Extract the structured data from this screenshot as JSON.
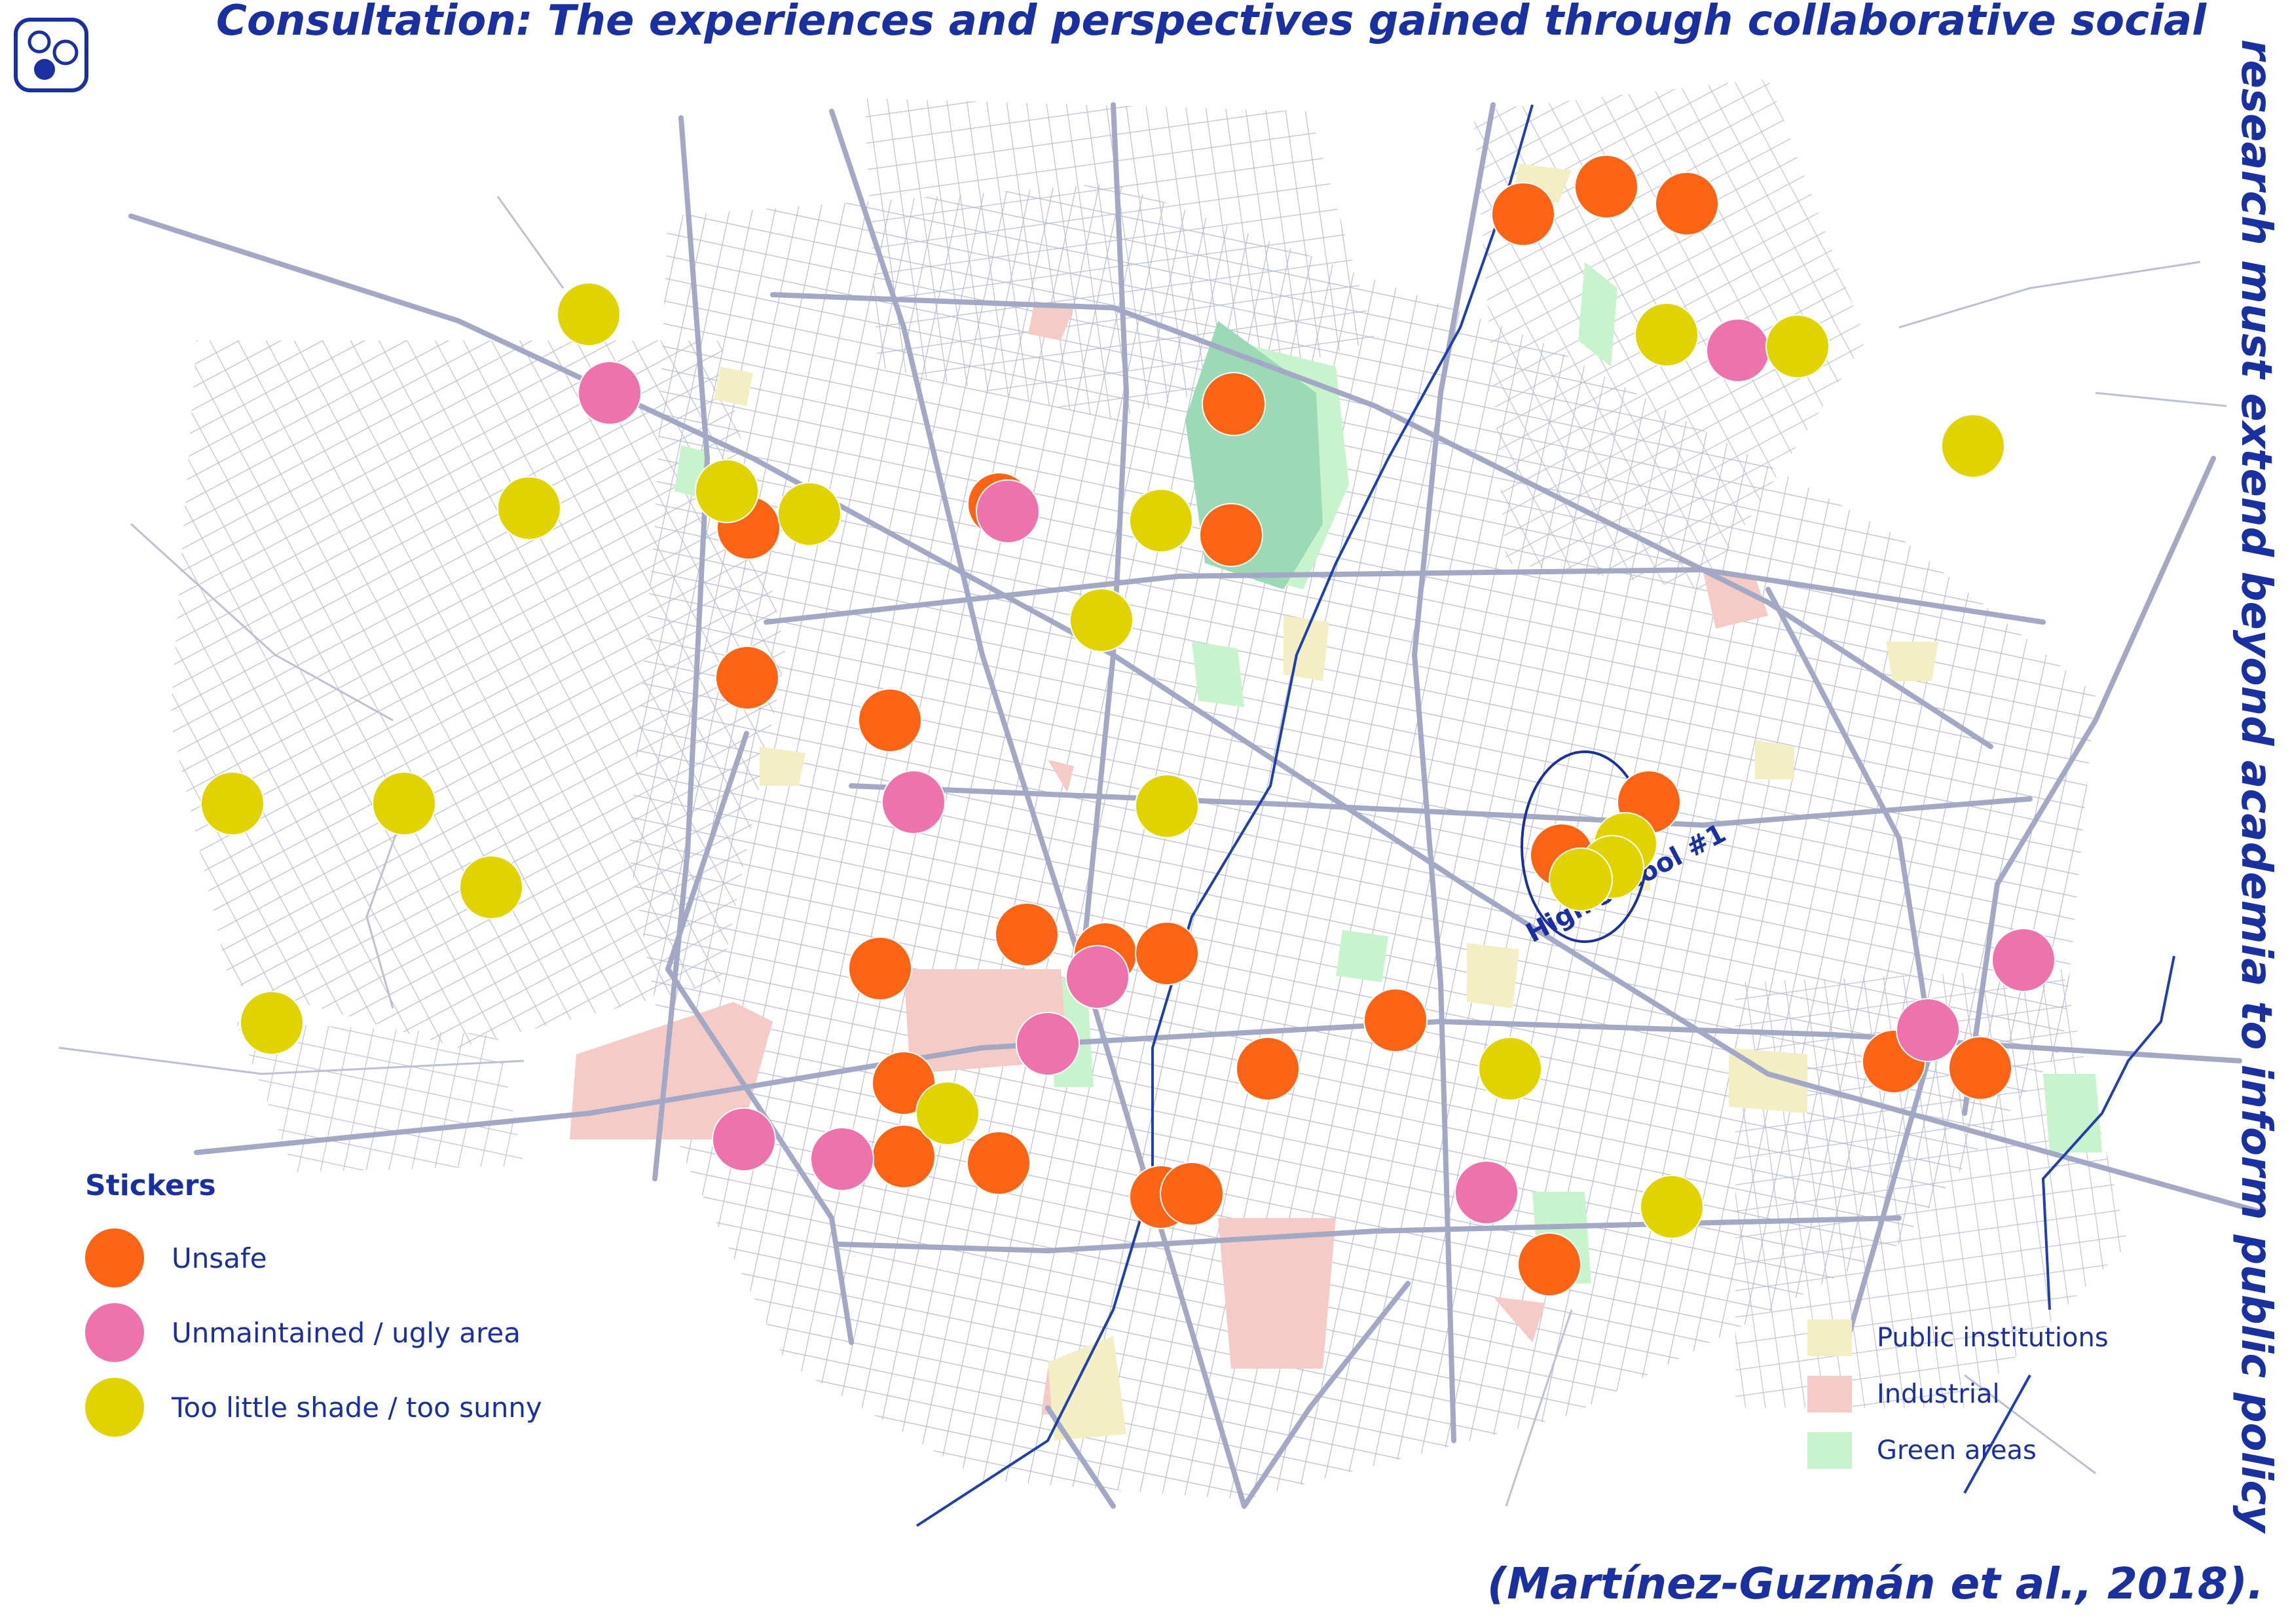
{
  "title": {
    "line1": "Consultation: The experiences and perspectives gained through collaborative social",
    "line2": "research must extend beyond academia to inform public policy",
    "citation": "(Martínez-Guzmán et al., 2018)."
  },
  "colors": {
    "title": "#1a2fa0",
    "unsafe": "#fa6414",
    "unmaintained": "#ee72ac",
    "sunny": "#e0d300",
    "public_institutions": "#f3eec4",
    "industrial": "#f4cbc6",
    "green_areas": "#c8f3cd",
    "streets": "#a9aec7",
    "rivers": "#1f3fb0"
  },
  "logo": {
    "icon": "circles-logo-icon"
  },
  "map_annotation": {
    "label": "High school #1"
  },
  "stickers_legend": {
    "title": "Stickers",
    "items": [
      {
        "label": "Unsafe",
        "category": "unsafe"
      },
      {
        "label": "Unmaintained / ugly area",
        "category": "unmaintained"
      },
      {
        "label": "Too little shade / too sunny",
        "category": "sunny"
      }
    ]
  },
  "landuse_legend": {
    "items": [
      {
        "label": "Public institutions",
        "category": "public_institutions"
      },
      {
        "label": "Industrial",
        "category": "industrial"
      },
      {
        "label": "Green areas",
        "category": "green_areas"
      }
    ]
  }
}
